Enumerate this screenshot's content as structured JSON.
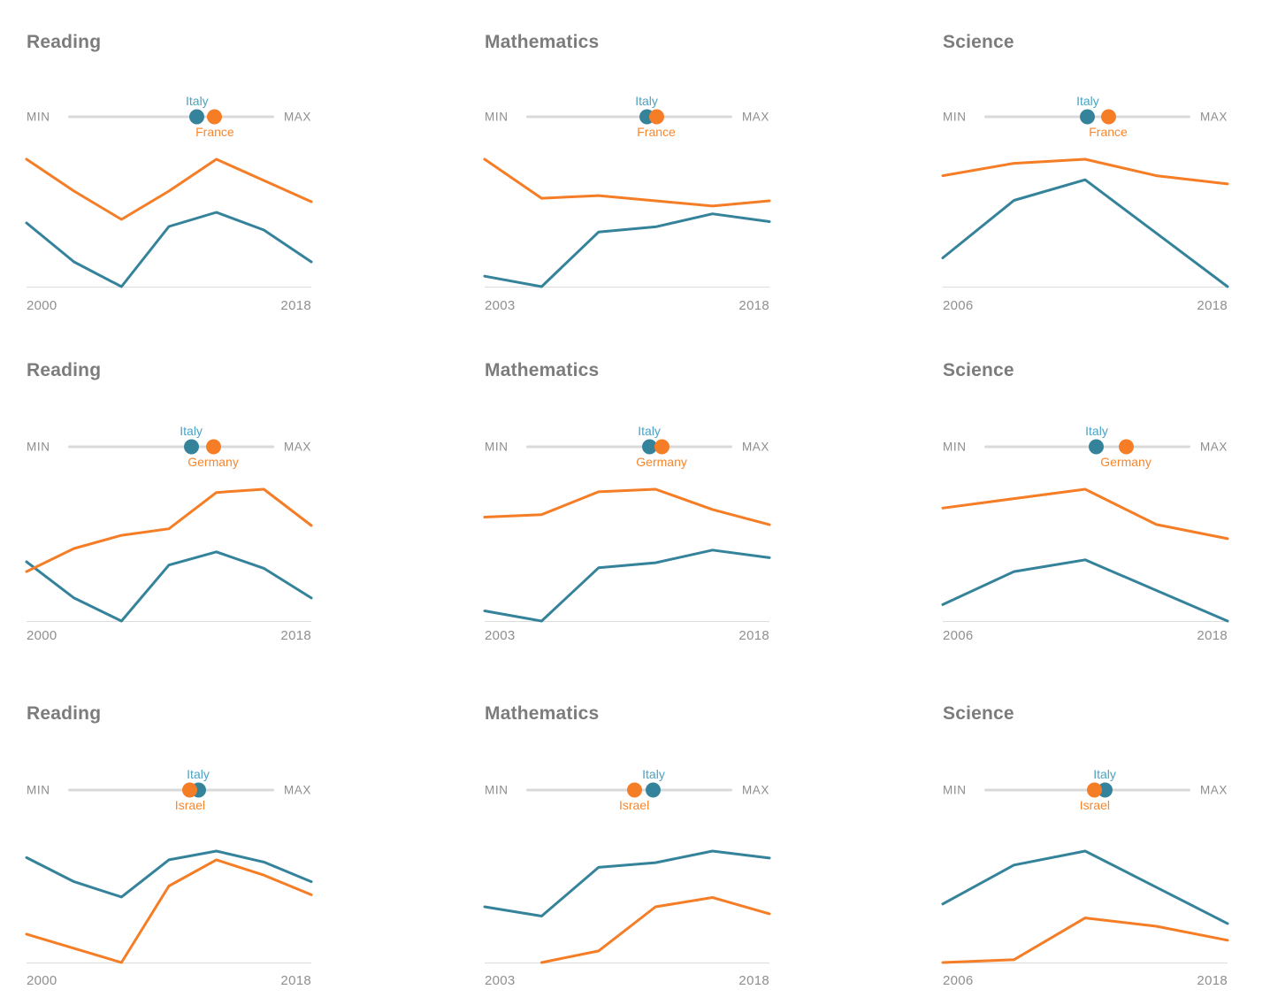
{
  "page": {
    "background": "#ffffff"
  },
  "ui": {
    "slider_min": "MIN",
    "slider_max": "MAX",
    "italy_label": "Italy"
  },
  "colors": {
    "italy_line": "#35839b",
    "italy_label": "#4aa3c4",
    "country_line": "#f57d26",
    "country_label": "#f8862d",
    "slider_track": "#d9d9d9",
    "axis_line": "#dcdcdc",
    "title_text": "#7c7c7c",
    "minmax_text": "#8d8d8d",
    "tick_text": "#8f8f8f"
  },
  "chart_data": [
    {
      "type": "line",
      "title": "Reading",
      "comparison": "Italy vs France",
      "row": 0,
      "col": 0,
      "x": [
        2000,
        2003,
        2006,
        2009,
        2012,
        2015,
        2018
      ],
      "x_tick_labels": [
        "2000",
        "2018"
      ],
      "series": [
        {
          "name": "Italy",
          "color_key": "italy",
          "values": [
            487,
            476,
            469,
            486,
            490,
            485,
            476
          ]
        },
        {
          "name": "France",
          "color_key": "country",
          "values": [
            505,
            496,
            488,
            496,
            505,
            499,
            493
          ]
        }
      ],
      "grid": false,
      "y_axis_shown": false,
      "y_scale": "min value sits on baseline, max at top of panel",
      "slider": {
        "min": "MIN",
        "max": "MAX",
        "italy_frac": 0.626,
        "country_frac": 0.712,
        "label_top": "Italy",
        "label_bottom": "France"
      }
    },
    {
      "type": "line",
      "title": "Mathematics",
      "comparison": "Italy vs France",
      "row": 0,
      "col": 1,
      "x": [
        2003,
        2006,
        2009,
        2012,
        2015,
        2018
      ],
      "x_tick_labels": [
        "2003",
        "2018"
      ],
      "series": [
        {
          "name": "Italy",
          "color_key": "italy",
          "values": [
            466,
            462,
            483,
            485,
            490,
            487
          ]
        },
        {
          "name": "France",
          "color_key": "country",
          "values": [
            511,
            496,
            497,
            495,
            493,
            495
          ]
        }
      ],
      "grid": false,
      "y_axis_shown": false,
      "y_scale": "min value sits on baseline, max at top of panel",
      "slider": {
        "min": "MIN",
        "max": "MAX",
        "italy_frac": 0.584,
        "country_frac": 0.631,
        "label_top": "Italy",
        "label_bottom": "France"
      }
    },
    {
      "type": "line",
      "title": "Science",
      "comparison": "Italy vs France",
      "row": 0,
      "col": 2,
      "x": [
        2006,
        2009,
        2012,
        2015,
        2018
      ],
      "x_tick_labels": [
        "2006",
        "2018"
      ],
      "series": [
        {
          "name": "Italy",
          "color_key": "italy",
          "values": [
            475,
            489,
            494,
            481,
            468
          ]
        },
        {
          "name": "France",
          "color_key": "country",
          "values": [
            495,
            498,
            499,
            495,
            493
          ]
        }
      ],
      "grid": false,
      "y_axis_shown": false,
      "y_scale": "min value sits on baseline, max at top of panel",
      "slider": {
        "min": "MIN",
        "max": "MAX",
        "italy_frac": 0.502,
        "country_frac": 0.601,
        "label_top": "Italy",
        "label_bottom": "France"
      }
    },
    {
      "type": "line",
      "title": "Reading",
      "comparison": "Italy vs Germany",
      "row": 1,
      "col": 0,
      "x": [
        2000,
        2003,
        2006,
        2009,
        2012,
        2015,
        2018
      ],
      "x_tick_labels": [
        "2000",
        "2018"
      ],
      "series": [
        {
          "name": "Italy",
          "color_key": "italy",
          "values": [
            487,
            476,
            469,
            486,
            490,
            485,
            476
          ]
        },
        {
          "name": "Germany",
          "color_key": "country",
          "values": [
            484,
            491,
            495,
            497,
            508,
            509,
            498
          ]
        }
      ],
      "grid": false,
      "y_axis_shown": false,
      "y_scale": "min value sits on baseline, max at top of panel",
      "slider": {
        "min": "MIN",
        "max": "MAX",
        "italy_frac": 0.597,
        "country_frac": 0.704,
        "label_top": "Italy",
        "label_bottom": "Germany"
      }
    },
    {
      "type": "line",
      "title": "Mathematics",
      "comparison": "Italy vs Germany",
      "row": 1,
      "col": 1,
      "x": [
        2003,
        2006,
        2009,
        2012,
        2015,
        2018
      ],
      "x_tick_labels": [
        "2003",
        "2018"
      ],
      "series": [
        {
          "name": "Italy",
          "color_key": "italy",
          "values": [
            466,
            462,
            483,
            485,
            490,
            487
          ]
        },
        {
          "name": "Germany",
          "color_key": "country",
          "values": [
            503,
            504,
            513,
            514,
            506,
            500
          ]
        }
      ],
      "grid": false,
      "y_axis_shown": false,
      "y_scale": "min value sits on baseline, max at top of panel",
      "slider": {
        "min": "MIN",
        "max": "MAX",
        "italy_frac": 0.597,
        "country_frac": 0.657,
        "label_top": "Italy",
        "label_bottom": "Germany"
      }
    },
    {
      "type": "line",
      "title": "Science",
      "comparison": "Italy vs Germany",
      "row": 1,
      "col": 2,
      "x": [
        2006,
        2009,
        2012,
        2015,
        2018
      ],
      "x_tick_labels": [
        "2006",
        "2018"
      ],
      "series": [
        {
          "name": "Italy",
          "color_key": "italy",
          "values": [
            475,
            489,
            494,
            481,
            468
          ]
        },
        {
          "name": "Germany",
          "color_key": "country",
          "values": [
            516,
            520,
            524,
            509,
            503
          ]
        }
      ],
      "grid": false,
      "y_axis_shown": false,
      "y_scale": "min value sits on baseline, max at top of panel",
      "slider": {
        "min": "MIN",
        "max": "MAX",
        "italy_frac": 0.545,
        "country_frac": 0.687,
        "label_top": "Italy",
        "label_bottom": "Germany"
      }
    },
    {
      "type": "line",
      "title": "Reading",
      "comparison": "Italy vs Israel",
      "row": 2,
      "col": 0,
      "x": [
        2000,
        2003,
        2006,
        2009,
        2012,
        2015,
        2018
      ],
      "x_tick_labels": [
        "2000",
        "2018"
      ],
      "series": [
        {
          "name": "Italy",
          "color_key": "italy",
          "values": [
            487,
            476,
            469,
            486,
            490,
            485,
            476
          ]
        },
        {
          "name": "Israel",
          "color_key": "country",
          "values": [
            452,
            null,
            439,
            474,
            486,
            479,
            470
          ]
        }
      ],
      "grid": false,
      "y_axis_shown": false,
      "y_scale": "min value sits on baseline, max at top of panel",
      "slider": {
        "min": "MIN",
        "max": "MAX",
        "italy_frac": 0.631,
        "country_frac": 0.592,
        "label_top": "Italy",
        "label_bottom": "Israel"
      }
    },
    {
      "type": "line",
      "title": "Mathematics",
      "comparison": "Italy vs Israel",
      "row": 2,
      "col": 1,
      "x": [
        2003,
        2006,
        2009,
        2012,
        2015,
        2018
      ],
      "x_tick_labels": [
        "2003",
        "2018"
      ],
      "series": [
        {
          "name": "Italy",
          "color_key": "italy",
          "values": [
            466,
            462,
            483,
            485,
            490,
            487
          ]
        },
        {
          "name": "Israel",
          "color_key": "country",
          "values": [
            null,
            442,
            447,
            466,
            470,
            463
          ]
        }
      ],
      "grid": false,
      "y_axis_shown": false,
      "y_scale": "min value sits on baseline, max at top of panel",
      "slider": {
        "min": "MIN",
        "max": "MAX",
        "italy_frac": 0.618,
        "country_frac": 0.524,
        "label_top": "Italy",
        "label_bottom": "Israel"
      }
    },
    {
      "type": "line",
      "title": "Science",
      "comparison": "Italy vs Israel",
      "row": 2,
      "col": 2,
      "x": [
        2006,
        2009,
        2012,
        2015,
        2018
      ],
      "x_tick_labels": [
        "2006",
        "2018"
      ],
      "series": [
        {
          "name": "Italy",
          "color_key": "italy",
          "values": [
            475,
            489,
            494,
            481,
            468
          ]
        },
        {
          "name": "Israel",
          "color_key": "country",
          "values": [
            454,
            455,
            470,
            467,
            462
          ]
        }
      ],
      "grid": false,
      "y_axis_shown": false,
      "y_scale": "min value sits on baseline, max at top of panel",
      "slider": {
        "min": "MIN",
        "max": "MAX",
        "italy_frac": 0.584,
        "country_frac": 0.536,
        "label_top": "Italy",
        "label_bottom": "Israel"
      }
    }
  ]
}
